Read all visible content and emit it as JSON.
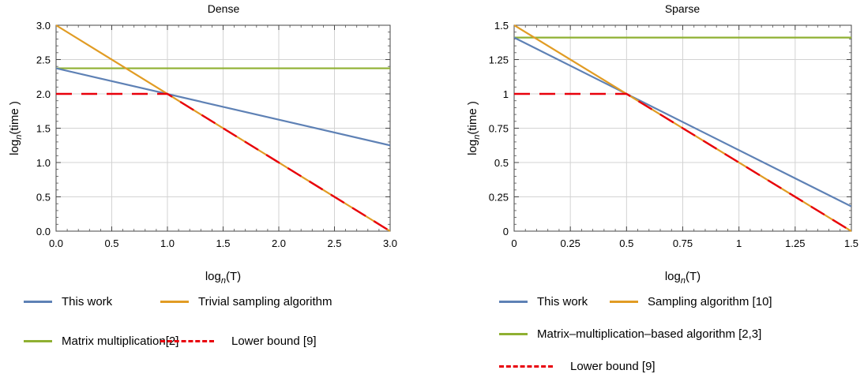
{
  "chart_data": [
    {
      "type": "line",
      "title": "Dense",
      "xlabel": "log_n(T)",
      "ylabel": "log_n(time)",
      "xlim": [
        0,
        3
      ],
      "ylim": [
        0,
        3
      ],
      "xticks": [
        0,
        0.5,
        1,
        1.5,
        2,
        2.5,
        3
      ],
      "yticks": [
        0,
        0.5,
        1,
        1.5,
        2,
        2.5,
        3
      ],
      "xtick_labels": [
        "0.0",
        "0.5",
        "1.0",
        "1.5",
        "2.0",
        "2.5",
        "3.0"
      ],
      "ytick_labels": [
        "0.0",
        "0.5",
        "1.0",
        "1.5",
        "2.0",
        "2.5",
        "3.0"
      ],
      "grid": true,
      "series": [
        {
          "name": "This work",
          "color": "#5E81B5",
          "dash": "solid",
          "x": [
            0,
            3
          ],
          "y": [
            2.373,
            1.25
          ]
        },
        {
          "name": "Trivial sampling algorithm",
          "color": "#E19C24",
          "dash": "solid",
          "x": [
            0,
            3
          ],
          "y": [
            3,
            0
          ]
        },
        {
          "name": "Matrix multiplication[2]",
          "color": "#8FB032",
          "dash": "solid",
          "x": [
            0,
            3
          ],
          "y": [
            2.373,
            2.373
          ]
        },
        {
          "name": "Lower bound [9]",
          "color": "#E8000B",
          "dash": "dashed",
          "x": [
            0,
            1,
            3
          ],
          "y": [
            2,
            2,
            0
          ]
        }
      ],
      "legend_rows": [
        [
          "This work",
          "Trivial sampling algorithm"
        ],
        [
          "Matrix multiplication[2]",
          "Lower bound [9]"
        ]
      ]
    },
    {
      "type": "line",
      "title": "Sparse",
      "xlabel": "log_n(T)",
      "ylabel": "log_n(time)",
      "xlim": [
        0,
        1.5
      ],
      "ylim": [
        0,
        1.5
      ],
      "xticks": [
        0,
        0.25,
        0.5,
        0.75,
        1,
        1.25,
        1.5
      ],
      "yticks": [
        0,
        0.25,
        0.5,
        0.75,
        1,
        1.25,
        1.5
      ],
      "xtick_labels": [
        "0",
        "0.25",
        "0.5",
        "0.75",
        "1",
        "1.25",
        "1.5"
      ],
      "ytick_labels": [
        "0",
        "0.25",
        "0.5",
        "0.75",
        "1",
        "1.25",
        "1.5"
      ],
      "grid": true,
      "series": [
        {
          "name": "This work",
          "color": "#5E81B5",
          "dash": "solid",
          "x": [
            0,
            1.5
          ],
          "y": [
            1.41,
            0.18
          ]
        },
        {
          "name": "Sampling algorithm [10]",
          "color": "#E19C24",
          "dash": "solid",
          "x": [
            0,
            1.5
          ],
          "y": [
            1.5,
            0
          ]
        },
        {
          "name": "Matrix–multiplication–based algorithm [2,3]",
          "color": "#8FB032",
          "dash": "solid",
          "x": [
            0,
            1.5
          ],
          "y": [
            1.41,
            1.41
          ]
        },
        {
          "name": "Lower bound [9]",
          "color": "#E8000B",
          "dash": "dashed",
          "x": [
            0,
            0.5,
            1.5
          ],
          "y": [
            1,
            1,
            0
          ]
        }
      ],
      "legend_rows": [
        [
          "This work",
          "Sampling algorithm [10]"
        ],
        [
          "Matrix–multiplication–based algorithm [2,3]"
        ],
        [
          "Lower bound [9]"
        ]
      ]
    }
  ]
}
